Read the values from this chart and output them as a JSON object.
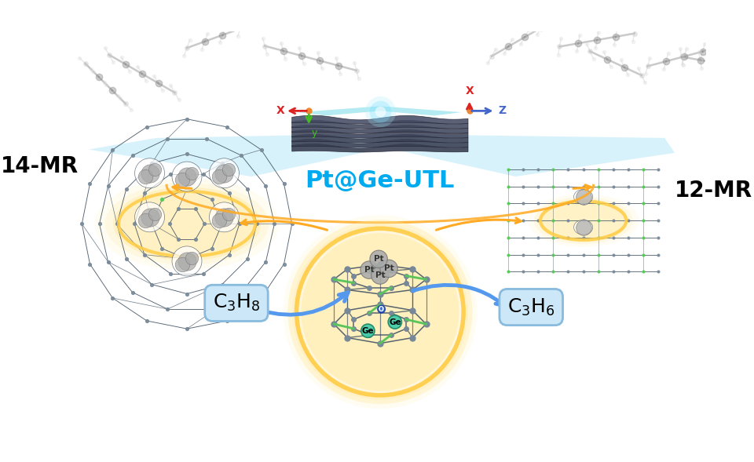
{
  "title": "Pt@Ge-UTL",
  "title_color": "#00aaee",
  "title_fontsize": 22,
  "label_14MR": "14-MR",
  "label_12MR": "12-MR",
  "bg_color": "#ffffff",
  "glow_orange": "#ffcc44",
  "glow_orange_inner": "#ffe899",
  "arrow_blue": "#5599ee",
  "arrow_orange": "#ffaa22",
  "zeolite_gray": "#7a8a99",
  "zeolite_green": "#55cc55",
  "axis_x_color": "#dd2222",
  "axis_y_color": "#44bb22",
  "axis_z_color": "#4466cc",
  "box_fill": "#cce8f8",
  "box_edge": "#88bbdd",
  "mr_fontsize": 20,
  "mol_label_fontsize": 18
}
